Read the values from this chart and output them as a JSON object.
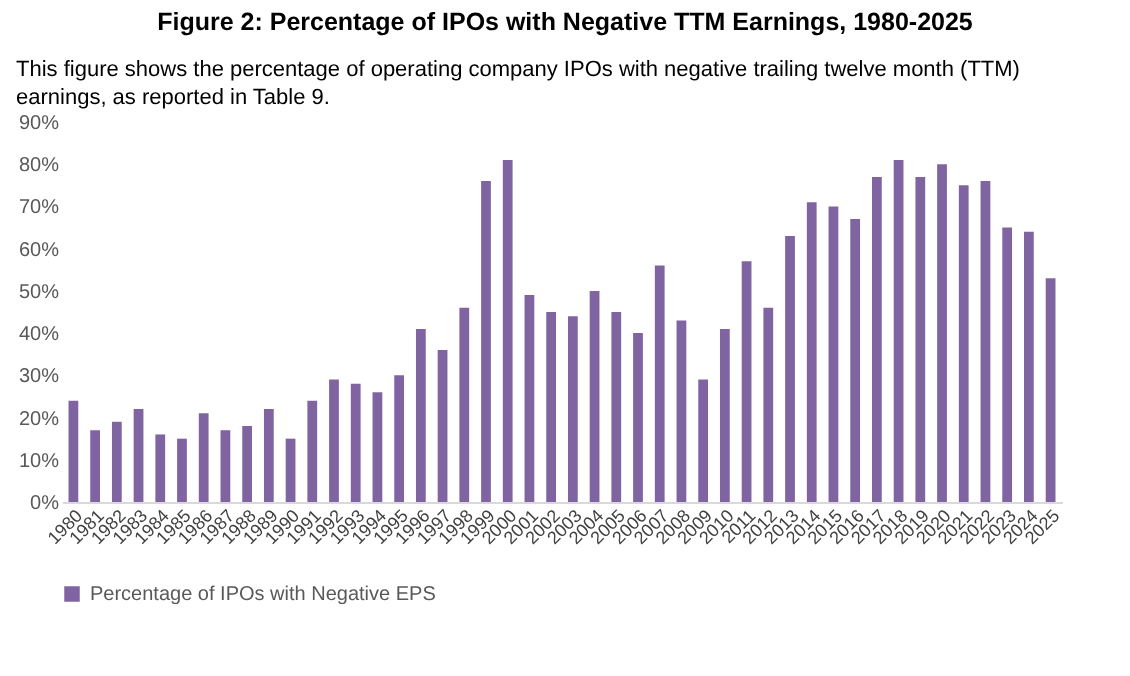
{
  "chart_data": {
    "type": "bar",
    "title": "Figure 2:  Percentage of IPOs with Negative TTM Earnings, 1980-2025",
    "subtitle": "This figure shows the percentage of operating company IPOs with negative trailing twelve month (TTM) earnings, as reported in Table 9.",
    "categories": [
      "1980",
      "1981",
      "1982",
      "1983",
      "1984",
      "1985",
      "1986",
      "1987",
      "1988",
      "1989",
      "1990",
      "1991",
      "1992",
      "1993",
      "1994",
      "1995",
      "1996",
      "1997",
      "1998",
      "1999",
      "2000",
      "2001",
      "2002",
      "2003",
      "2004",
      "2005",
      "2006",
      "2007",
      "2008",
      "2009",
      "2010",
      "2011",
      "2012",
      "2013",
      "2014",
      "2015",
      "2016",
      "2017",
      "2018",
      "2019",
      "2020",
      "2021",
      "2022",
      "2023",
      "2024",
      "2025"
    ],
    "series": [
      {
        "name": "Percentage of IPOs with Negative EPS",
        "color": "#8064a2",
        "values": [
          24,
          17,
          19,
          22,
          16,
          15,
          21,
          17,
          18,
          22,
          15,
          24,
          29,
          28,
          26,
          30,
          41,
          36,
          46,
          76,
          81,
          49,
          45,
          44,
          50,
          45,
          40,
          56,
          43,
          29,
          41,
          57,
          46,
          63,
          71,
          70,
          67,
          77,
          81,
          77,
          80,
          75,
          76,
          65,
          64,
          53
        ]
      }
    ],
    "ylim": [
      0,
      90
    ],
    "yticks": [
      {
        "value": 0,
        "label": "0%"
      },
      {
        "value": 10,
        "label": "10%"
      },
      {
        "value": 20,
        "label": "20%"
      },
      {
        "value": 30,
        "label": "30%"
      },
      {
        "value": 40,
        "label": "40%"
      },
      {
        "value": 50,
        "label": "50%"
      },
      {
        "value": 60,
        "label": "60%"
      },
      {
        "value": 70,
        "label": "70%"
      },
      {
        "value": 80,
        "label": "80%"
      },
      {
        "value": 90,
        "label": "90%"
      }
    ],
    "grid": false,
    "legend": "bottom"
  }
}
